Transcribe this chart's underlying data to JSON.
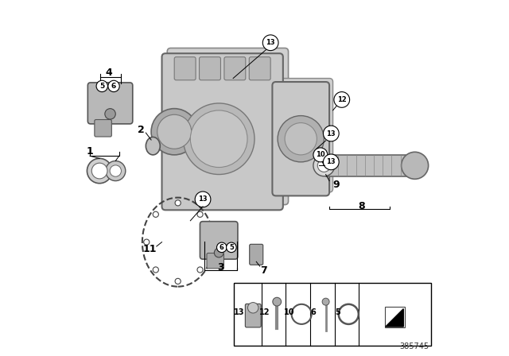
{
  "title": "",
  "bg_color": "#ffffff",
  "border_color": "#000000",
  "fig_width": 6.4,
  "fig_height": 4.48,
  "dpi": 100,
  "diagram_ref": "385745"
}
